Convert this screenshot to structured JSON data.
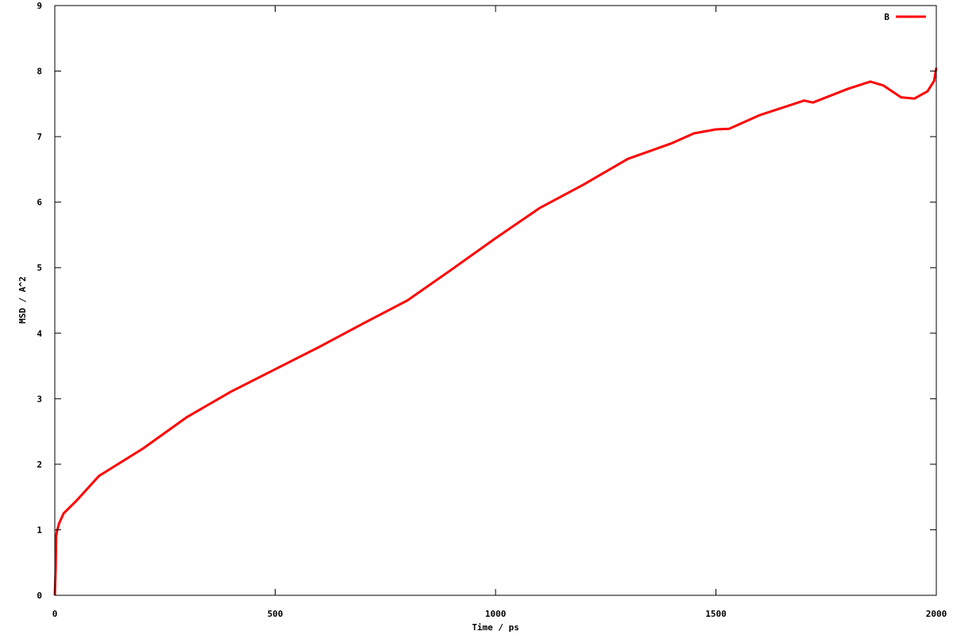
{
  "chart_data": {
    "type": "line",
    "title": "",
    "xlabel": "Time / ps",
    "ylabel": "MSD / A^2",
    "xlim": [
      0,
      2000
    ],
    "ylim": [
      0,
      9
    ],
    "xticks": [
      0,
      500,
      1000,
      1500,
      2000
    ],
    "yticks": [
      0,
      1,
      2,
      3,
      4,
      5,
      6,
      7,
      8,
      9
    ],
    "grid": false,
    "legend": "top-right",
    "series": [
      {
        "name": "B",
        "color": "#ff0000",
        "x": [
          0,
          2,
          3,
          5,
          10,
          20,
          50,
          100,
          200,
          300,
          400,
          500,
          600,
          700,
          800,
          900,
          1000,
          1100,
          1200,
          1300,
          1400,
          1450,
          1500,
          1530,
          1600,
          1700,
          1720,
          1800,
          1850,
          1880,
          1920,
          1950,
          1980,
          1995,
          2000
        ],
        "y": [
          0,
          0.4,
          0.9,
          0.98,
          1.1,
          1.25,
          1.45,
          1.82,
          2.24,
          2.72,
          3.11,
          3.45,
          3.79,
          4.15,
          4.5,
          4.97,
          5.45,
          5.91,
          6.27,
          6.66,
          6.9,
          7.05,
          7.11,
          7.12,
          7.33,
          7.55,
          7.52,
          7.73,
          7.84,
          7.78,
          7.6,
          7.58,
          7.69,
          7.85,
          8.05
        ]
      }
    ]
  }
}
